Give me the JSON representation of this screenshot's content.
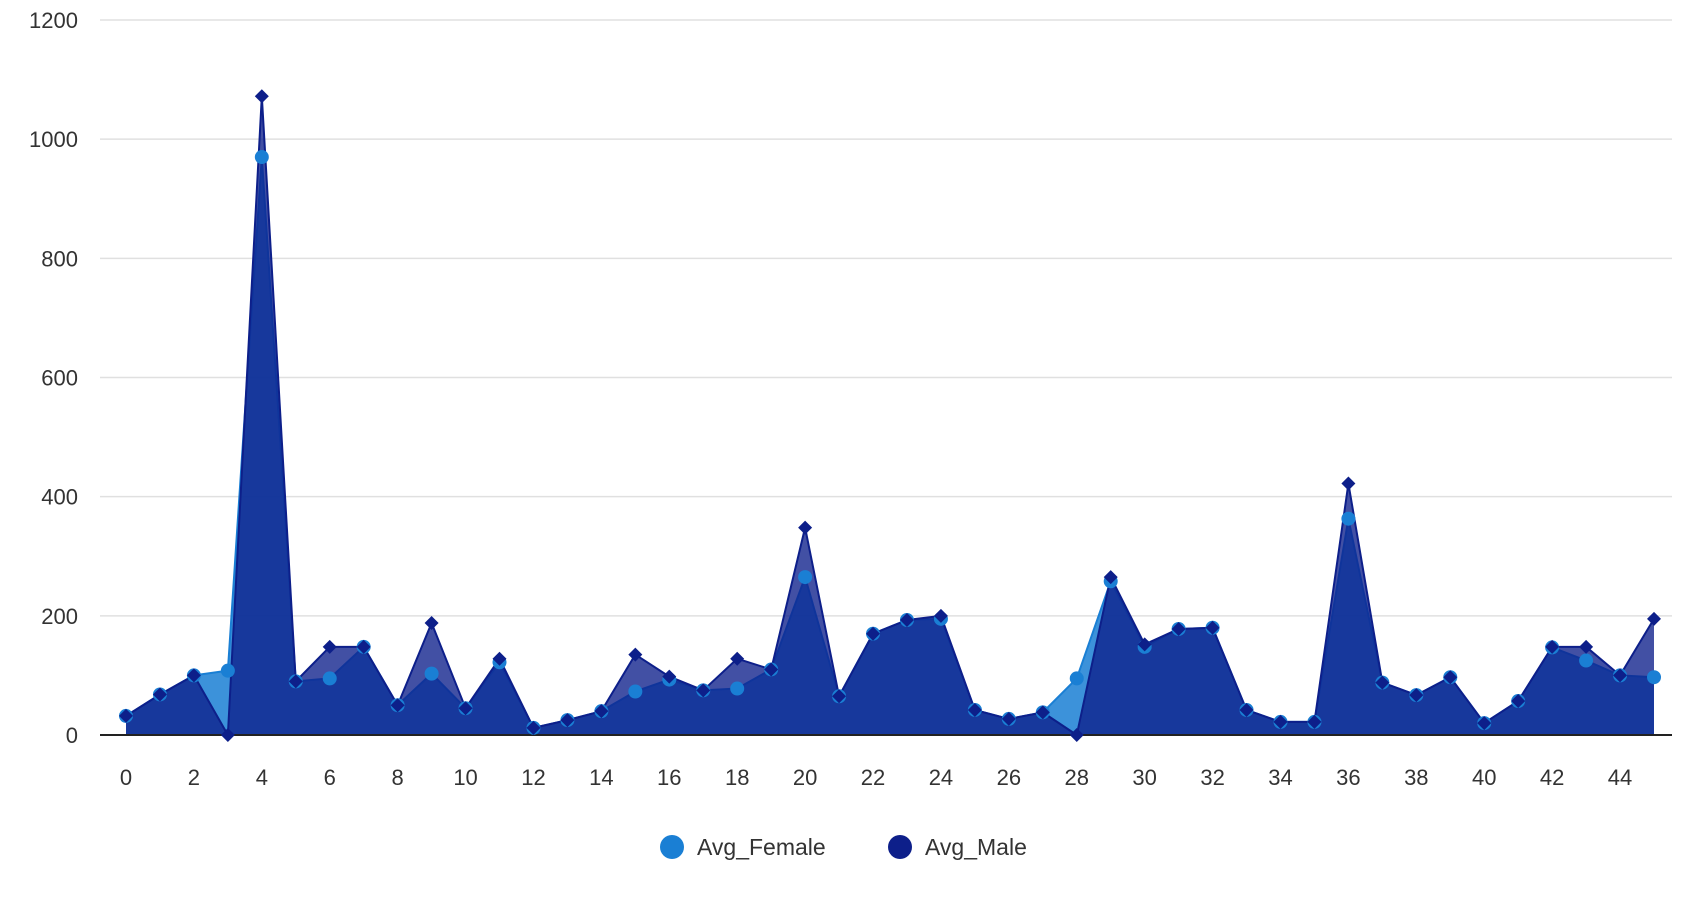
{
  "chart_data": {
    "type": "area",
    "title": "",
    "xlabel": "",
    "ylabel": "",
    "x": [
      0,
      1,
      2,
      3,
      4,
      5,
      6,
      7,
      8,
      9,
      10,
      11,
      12,
      13,
      14,
      15,
      16,
      17,
      18,
      19,
      20,
      21,
      22,
      23,
      24,
      25,
      26,
      27,
      28,
      29,
      30,
      31,
      32,
      33,
      34,
      35,
      36,
      37,
      38,
      39,
      40,
      41,
      42,
      43,
      44,
      45
    ],
    "xlim": [
      0,
      45
    ],
    "x_ticks": [
      0,
      2,
      4,
      6,
      8,
      10,
      12,
      14,
      16,
      18,
      20,
      22,
      24,
      26,
      28,
      30,
      32,
      34,
      36,
      38,
      40,
      42,
      44
    ],
    "ylim": [
      0,
      1200
    ],
    "y_ticks": [
      0,
      200,
      400,
      600,
      800,
      1000,
      1200
    ],
    "grid": true,
    "legend_position": "bottom-center",
    "series": [
      {
        "name": "Avg_Female",
        "color": "#1a7fd4",
        "marker": "circle",
        "values": [
          32,
          68,
          100,
          108,
          970,
          90,
          95,
          148,
          50,
          103,
          45,
          122,
          12,
          25,
          40,
          73,
          93,
          75,
          78,
          110,
          265,
          65,
          170,
          193,
          195,
          42,
          27,
          38,
          95,
          258,
          148,
          178,
          180,
          42,
          22,
          22,
          363,
          88,
          67,
          97,
          20,
          57,
          147,
          125,
          100,
          97
        ]
      },
      {
        "name": "Avg_Male",
        "color": "#0d1f8a",
        "marker": "diamond",
        "values": [
          32,
          68,
          100,
          0,
          1072,
          90,
          148,
          148,
          50,
          188,
          45,
          128,
          12,
          25,
          40,
          135,
          98,
          75,
          128,
          110,
          348,
          65,
          170,
          193,
          200,
          42,
          27,
          38,
          0,
          265,
          152,
          178,
          180,
          42,
          22,
          22,
          422,
          88,
          67,
          97,
          20,
          57,
          148,
          148,
          100,
          195
        ]
      }
    ]
  }
}
